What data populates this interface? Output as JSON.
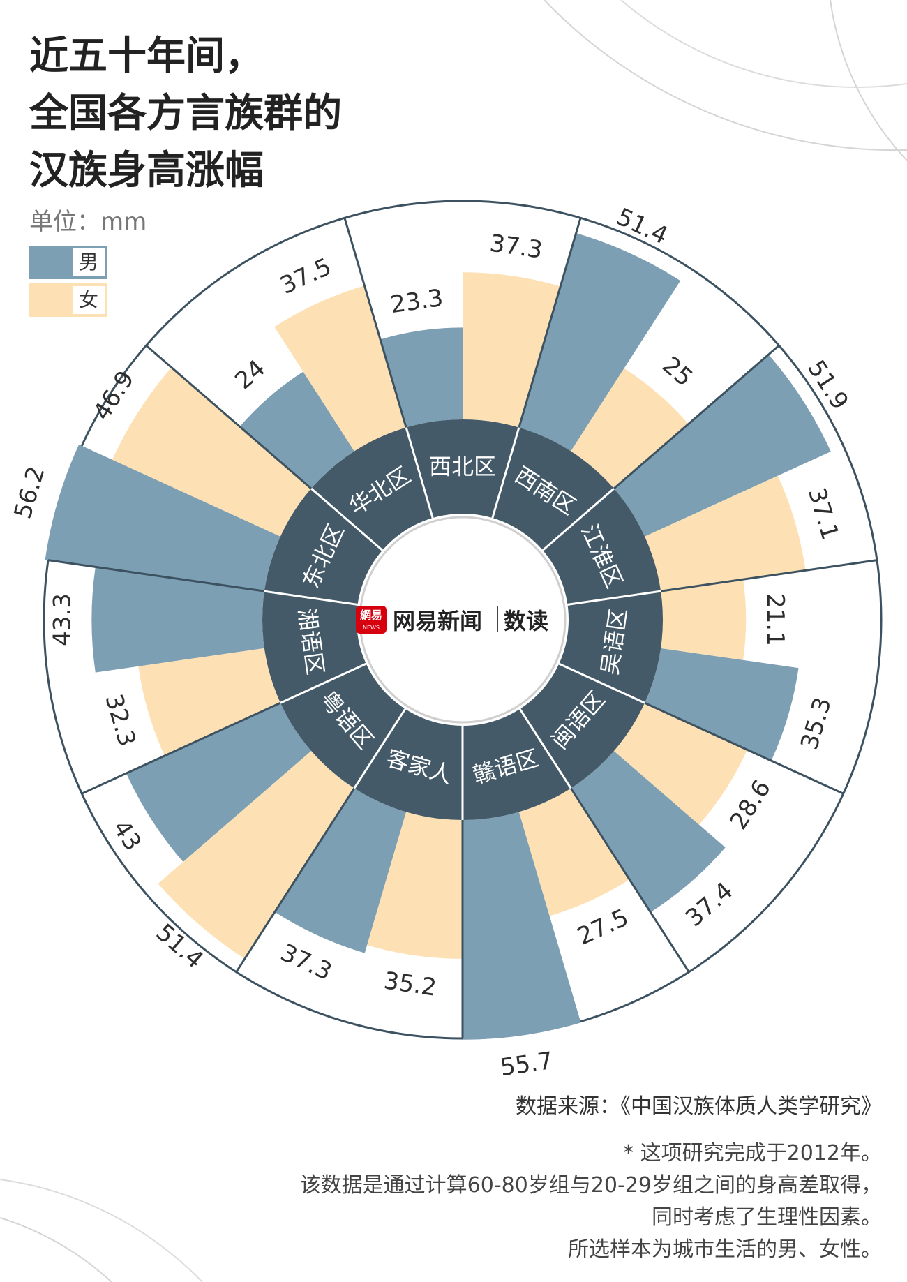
{
  "title_lines": [
    "近五十年间，",
    "全国各方言族群的",
    "汉族身高涨幅"
  ],
  "unit": "单位：mm",
  "legend": {
    "male": "男",
    "female": "女"
  },
  "colors": {
    "male": "#7d9fb3",
    "female": "#fde0b3",
    "region_ring": "#445a68",
    "line": "#3d5261",
    "text": "#2d2d2d"
  },
  "logo": {
    "badge_text": "網易",
    "badge_subtext": "NEWS",
    "brand": "网易新闻",
    "column": "数读"
  },
  "chart_data": {
    "type": "polar-bar",
    "categories": [
      "西北区",
      "西南区",
      "江淮区",
      "吴语区",
      "闽语区",
      "赣语区",
      "客家人",
      "粤语区",
      "湘语区",
      "东北区",
      "华北区"
    ],
    "series": [
      {
        "name": "男",
        "values": [
          23.3,
          51.4,
          51.9,
          35.3,
          37.4,
          55.7,
          37.3,
          43,
          43.3,
          56.2,
          24
        ]
      },
      {
        "name": "女",
        "values": [
          37.3,
          25,
          37.1,
          21.1,
          28.6,
          27.5,
          35.2,
          51.4,
          32.3,
          46.9,
          37.5
        ]
      }
    ],
    "label_texts": {
      "男": [
        "23.3",
        "51.4",
        "51.9",
        "35.3",
        "37.4",
        "55.7",
        "37.3",
        "43",
        "43.3",
        "56.2",
        "24"
      ],
      "女": [
        "37.3",
        "25",
        "37.1",
        "21.1",
        "28.6",
        "27.5",
        "35.2",
        "51.4",
        "32.3",
        "46.9",
        "37.5"
      ]
    }
  },
  "source": "数据来源：《中国汉族体质人类学研究》",
  "notes": [
    "* 这项研究完成于2012年。",
    "该数据是通过计算60-80岁组与20-29岁组之间的身高差取得，",
    "同时考虑了生理性因素。",
    "所选样本为城市生活的男、女性。"
  ]
}
